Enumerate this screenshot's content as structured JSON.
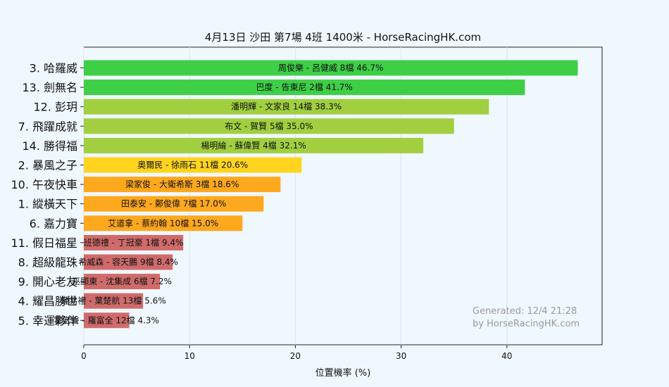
{
  "chart_data": {
    "type": "bar",
    "orientation": "horizontal",
    "title": "4月13日  沙田  第7場  4班  1400米 - HorseRacingHK.com",
    "xlabel": "位置機率 (%)",
    "ylabel": "",
    "xlim": [
      0,
      49
    ],
    "xticks": [
      "0",
      "10",
      "20",
      "30",
      "40"
    ],
    "grid": true,
    "categories": [
      "3. 哈羅威",
      "13. 劍無名",
      "12. 彭玥",
      "7. 飛躍成就",
      "14. 勝得福",
      "2. 暴風之子",
      "10. 午夜快車",
      "1. 縱橫天下",
      "6. 嘉力寶",
      "11. 假日福星",
      "8. 超級龍珠",
      "9. 開心老友",
      "4. 耀昌勝世",
      "5. 幸運夥伴"
    ],
    "values": [
      46.7,
      41.7,
      38.3,
      35.0,
      32.1,
      20.6,
      18.6,
      17.0,
      15.0,
      9.4,
      8.4,
      7.2,
      5.6,
      4.3
    ],
    "bar_labels": [
      "周俊樂 - 呂健威 8檔  46.7%",
      "巴度 - 告東尼 2檔  41.7%",
      "潘明輝 - 文家良 14檔  38.3%",
      "布文 - 賀賢 5檔  35.0%",
      "楊明綸 - 蘇偉賢 4檔  32.1%",
      "奧爾民 - 徐雨石 11檔  20.6%",
      "梁家俊 - 大衛希斯 3檔  18.6%",
      "田泰安 - 鄭俊偉 7檔  17.0%",
      "艾道拿 - 蔡約翰 10檔  15.0%",
      "班德禮 - 丁冠豪 1檔  9.4%",
      "希威森 - 容天鵬 9檔  8.4%",
      "巫顯東 - 沈集成 6檔  7.2%",
      "鍾易禮 - 葉楚航 13檔  5.6%",
      "霍宏聲 - 羅富全 12檔  4.3%"
    ],
    "colors": [
      "#3ecf47",
      "#3ecf47",
      "#a1cf40",
      "#a1cf40",
      "#a1cf40",
      "#fed41f",
      "#fea81e",
      "#fea81e",
      "#fea81e",
      "#d06b6b",
      "#d06b6b",
      "#d06b6b",
      "#d06b6b",
      "#d06b6b"
    ],
    "annotations": [
      "Generated: 12/4 21:28",
      "by HorseRacingHK.com"
    ]
  }
}
